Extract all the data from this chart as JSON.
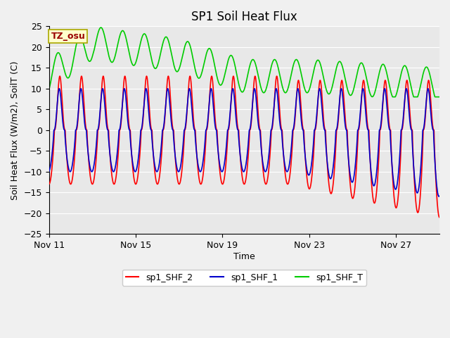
{
  "title": "SP1 Soil Heat Flux",
  "xlabel": "Time",
  "ylabel": "Soil Heat Flux (W/m2), SoilT (C)",
  "ylim": [
    -25,
    25
  ],
  "yticks": [
    -25,
    -20,
    -15,
    -10,
    -5,
    0,
    5,
    10,
    15,
    20,
    25
  ],
  "xtick_labels": [
    "Nov 11",
    "Nov 15",
    "Nov 19",
    "Nov 23",
    "Nov 27"
  ],
  "bg_color": "#e8e8e8",
  "fig_bg_color": "#f0f0f0",
  "line_colors": {
    "shf2": "#ff0000",
    "shf1": "#0000cc",
    "shft": "#00cc00"
  },
  "legend_labels": [
    "sp1_SHF_2",
    "sp1_SHF_1",
    "sp1_SHF_T"
  ],
  "tz_label": "TZ_osu",
  "tz_box_color": "#ffffcc",
  "tz_text_color": "#990000"
}
